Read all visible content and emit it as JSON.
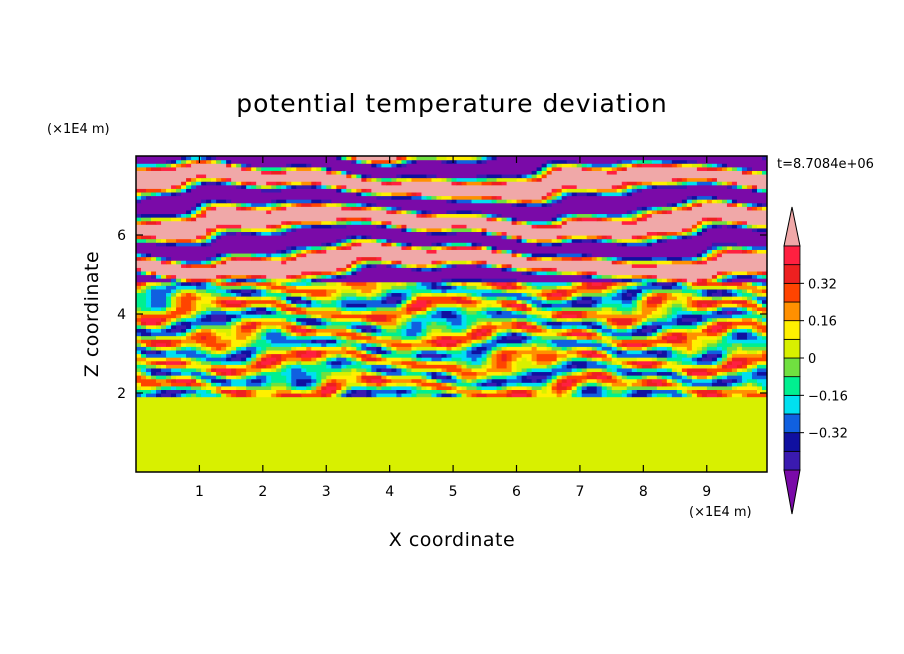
{
  "chart_data": {
    "type": "heatmap",
    "title": "potential temperature deviation",
    "xlabel": "X coordinate",
    "ylabel": "Z coordinate",
    "x_unit": "(×1E4 m)",
    "y_unit": "(×1E4 m)",
    "time_label": "t=8.7084e+06",
    "xlim": [
      0,
      9.95
    ],
    "ylim": [
      0,
      8.0
    ],
    "x_ticks": [
      1,
      2,
      3,
      4,
      5,
      6,
      7,
      8,
      9
    ],
    "y_ticks": [
      2,
      4,
      6
    ],
    "colorbar": {
      "levels": [
        -0.48,
        -0.4,
        -0.32,
        -0.24,
        -0.16,
        -0.08,
        0,
        0.08,
        0.16,
        0.24,
        0.32,
        0.4,
        0.48
      ],
      "tick_values": [
        0.32,
        0.16,
        0,
        -0.16,
        -0.32
      ],
      "tick_labels": [
        "0.32",
        "0.16",
        "0",
        "−0.16",
        "−0.32"
      ],
      "colors": [
        "#7a0aa8",
        "#3a1ab0",
        "#1010a0",
        "#1060e0",
        "#00e0f0",
        "#00f090",
        "#70e040",
        "#d8f000",
        "#fff000",
        "#ff9000",
        "#ff4400",
        "#ee2020",
        "#ff2040",
        "#f0a8a8"
      ],
      "extend": "both"
    },
    "layers": [
      {
        "z": [
          0.0,
          1.95
        ],
        "description_value": "near zero",
        "dominant": "#00f090"
      },
      {
        "z": [
          1.95,
          4.8
        ],
        "dominant": "mixed"
      },
      {
        "z": [
          4.8,
          8.0
        ],
        "dominant": "alternating #f0a8a8 / #7a0aa8"
      }
    ]
  }
}
